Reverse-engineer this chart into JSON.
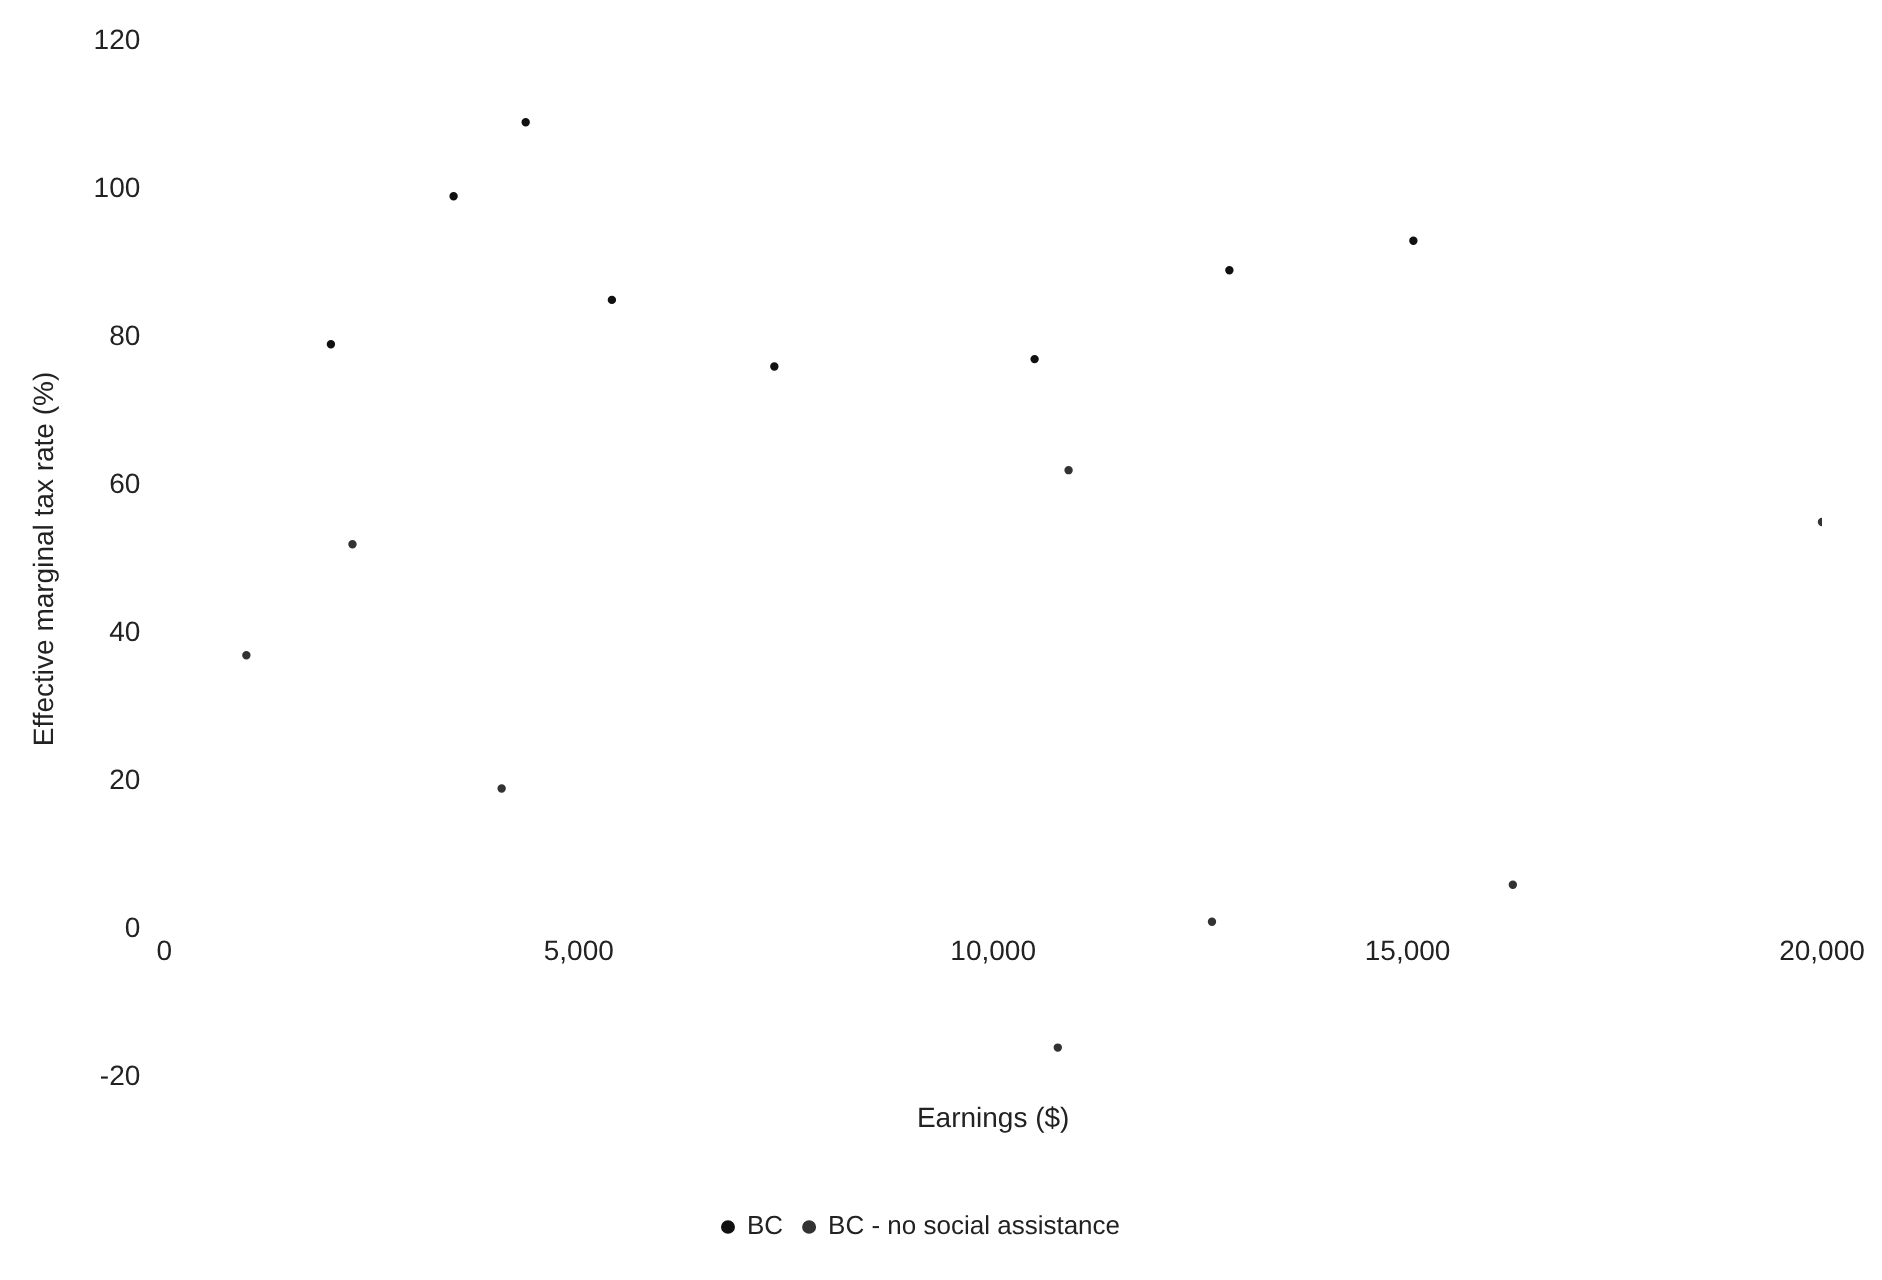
{
  "chart_data": {
    "type": "scatter",
    "xlabel": "Earnings ($)",
    "ylabel": "Effective marginal tax rate (%)",
    "xlim": [
      0,
      20000
    ],
    "xticks": [
      {
        "value": 0,
        "label": "0"
      },
      {
        "value": 5000,
        "label": "5,000"
      },
      {
        "value": 10000,
        "label": "10,000"
      },
      {
        "value": 15000,
        "label": "15,000"
      },
      {
        "value": 20000,
        "label": "20,000"
      }
    ],
    "ylim": [
      -20,
      120
    ],
    "yticks": [
      -20,
      0,
      20,
      40,
      60,
      80,
      100,
      120
    ],
    "grid": false,
    "legend": "bottom",
    "marker": "circle",
    "series": [
      {
        "name": "BC",
        "color": "#111111",
        "x": [
          2010,
          3490,
          4360,
          5400,
          7360,
          10500,
          12850,
          15070
        ],
        "values": [
          79,
          99,
          109,
          85,
          76,
          77,
          89,
          93
        ]
      },
      {
        "name": "BC - no social assistance",
        "color": "#333333",
        "x": [
          990,
          2270,
          4070,
          10780,
          10910,
          12640,
          16270,
          20000
        ],
        "values": [
          37,
          52,
          19,
          -16,
          62,
          1,
          6,
          55
        ]
      }
    ]
  }
}
